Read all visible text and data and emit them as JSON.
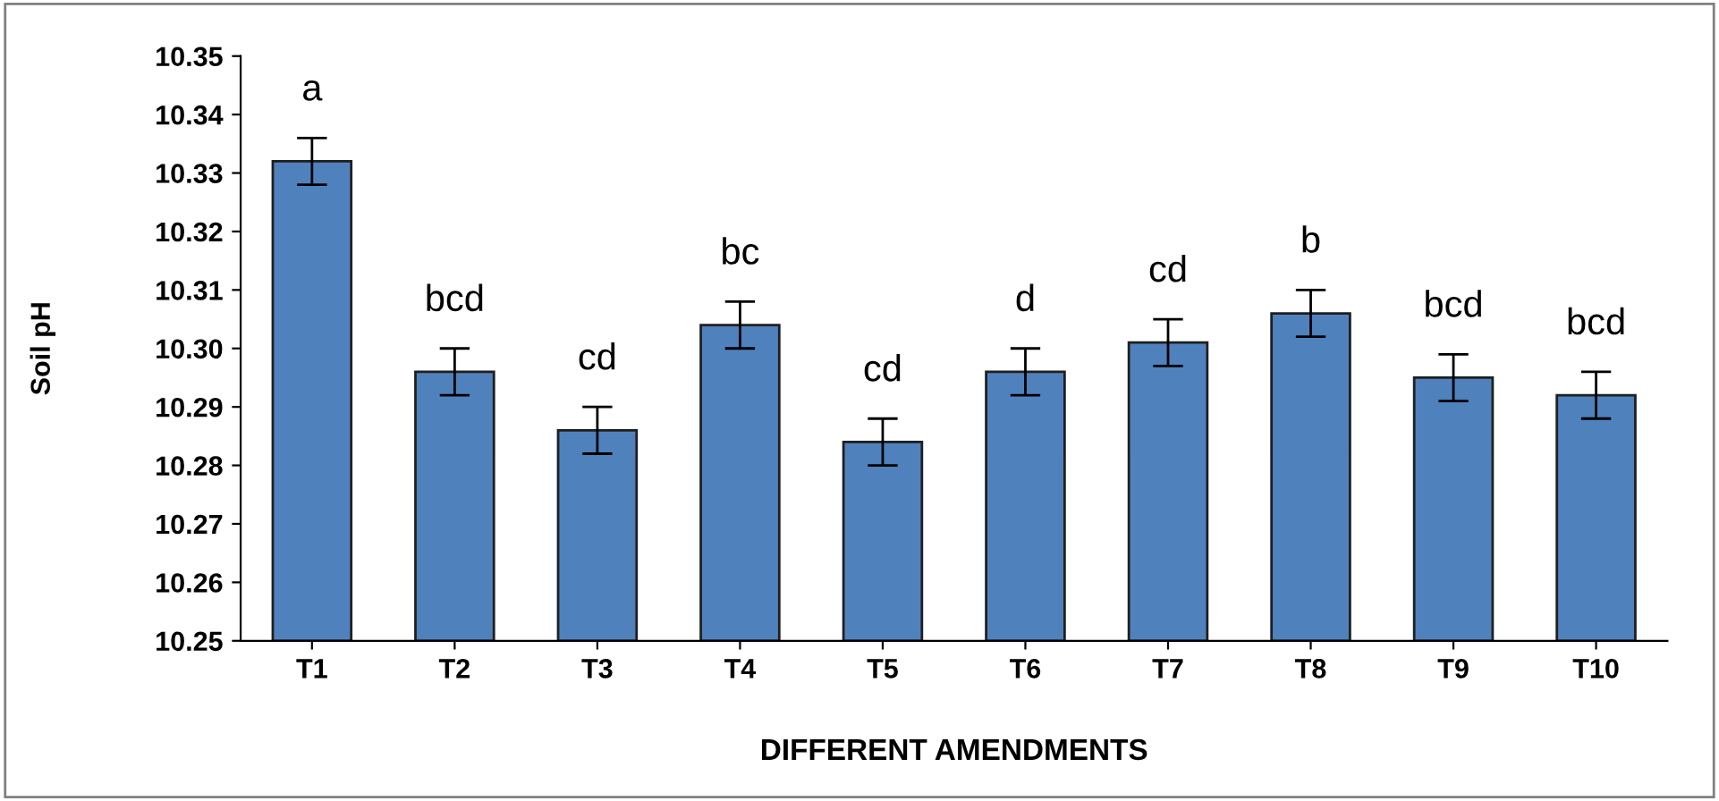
{
  "chart_data": {
    "type": "bar",
    "xlabel": "DIFFERENT AMENDMENTS",
    "ylabel": "Soil pH",
    "categories": [
      "T1",
      "T2",
      "T3",
      "T4",
      "T5",
      "T6",
      "T7",
      "T8",
      "T9",
      "T10"
    ],
    "values": [
      10.332,
      10.296,
      10.286,
      10.304,
      10.284,
      10.296,
      10.301,
      10.306,
      10.295,
      10.292
    ],
    "errors": [
      0.004,
      0.004,
      0.004,
      0.004,
      0.004,
      0.004,
      0.004,
      0.004,
      0.004,
      0.004
    ],
    "color": "#4f81bd",
    "ylim": [
      10.25,
      10.35
    ],
    "yticks": [
      {
        "value": 10.25,
        "label": "10.25"
      },
      {
        "value": 10.26,
        "label": "10.26"
      },
      {
        "value": 10.27,
        "label": "10.27"
      },
      {
        "value": 10.28,
        "label": "10.28"
      },
      {
        "value": 10.29,
        "label": "10.29"
      },
      {
        "value": 10.3,
        "label": "10.30"
      },
      {
        "value": 10.31,
        "label": "10.31"
      },
      {
        "value": 10.32,
        "label": "10.32"
      },
      {
        "value": 10.33,
        "label": "10.33"
      },
      {
        "value": 10.34,
        "label": "10.34"
      },
      {
        "value": 10.35,
        "label": "10.35"
      }
    ],
    "grid": false,
    "legend": false,
    "annotations": [
      "a",
      "bcd",
      "cd",
      "bc",
      "cd",
      "d",
      "cd",
      "b",
      "bcd",
      "bcd"
    ]
  }
}
